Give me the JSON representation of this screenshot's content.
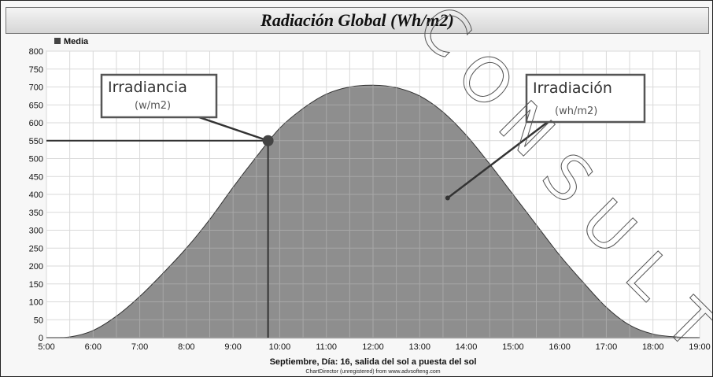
{
  "chart_data": {
    "type": "area",
    "title": "Radiación Global (Wh/m2)",
    "legend": [
      {
        "name": "Media",
        "color": "#7a7a7a"
      }
    ],
    "legend_position": "top-left",
    "xlabel": "Septiembre, Día: 16, salida del sol a puesta del sol",
    "x_ticks": [
      "5:00",
      "6:00",
      "7:00",
      "8:00",
      "9:00",
      "10:00",
      "11:00",
      "12:00",
      "13:00",
      "14:00",
      "15:00",
      "16:00",
      "17:00",
      "18:00",
      "19:00"
    ],
    "y_ticks": [
      0,
      50,
      100,
      150,
      200,
      250,
      300,
      350,
      400,
      450,
      500,
      550,
      600,
      650,
      700,
      750,
      800
    ],
    "xlim": [
      5,
      19
    ],
    "ylim": [
      0,
      800
    ],
    "grid": true,
    "series": [
      {
        "name": "Media",
        "color": "#7a7a7a",
        "x": [
          5.0,
          5.5,
          6.0,
          6.5,
          7.0,
          7.5,
          8.0,
          8.5,
          9.0,
          9.5,
          10.0,
          10.5,
          11.0,
          11.5,
          12.0,
          12.5,
          13.0,
          13.5,
          14.0,
          14.5,
          15.0,
          15.5,
          16.0,
          16.5,
          17.0,
          17.5,
          18.0,
          18.5,
          19.0
        ],
        "y": [
          0,
          2,
          20,
          60,
          115,
          180,
          250,
          330,
          420,
          505,
          585,
          640,
          680,
          700,
          705,
          698,
          675,
          630,
          565,
          485,
          400,
          315,
          230,
          155,
          85,
          35,
          10,
          2,
          0
        ]
      }
    ],
    "annotations": {
      "irradiancia": {
        "title": "Irradiancia",
        "unit": "(w/m2)",
        "point_x": 9.75,
        "point_y": 550
      },
      "irradiacion": {
        "title": "Irradiación",
        "unit": "(wh/m2)",
        "point_x": 13.6,
        "point_y": 390
      }
    },
    "credit": "ChartDirector (unregistered) from www.advsofteng.com",
    "watermark": "CONSULT"
  }
}
